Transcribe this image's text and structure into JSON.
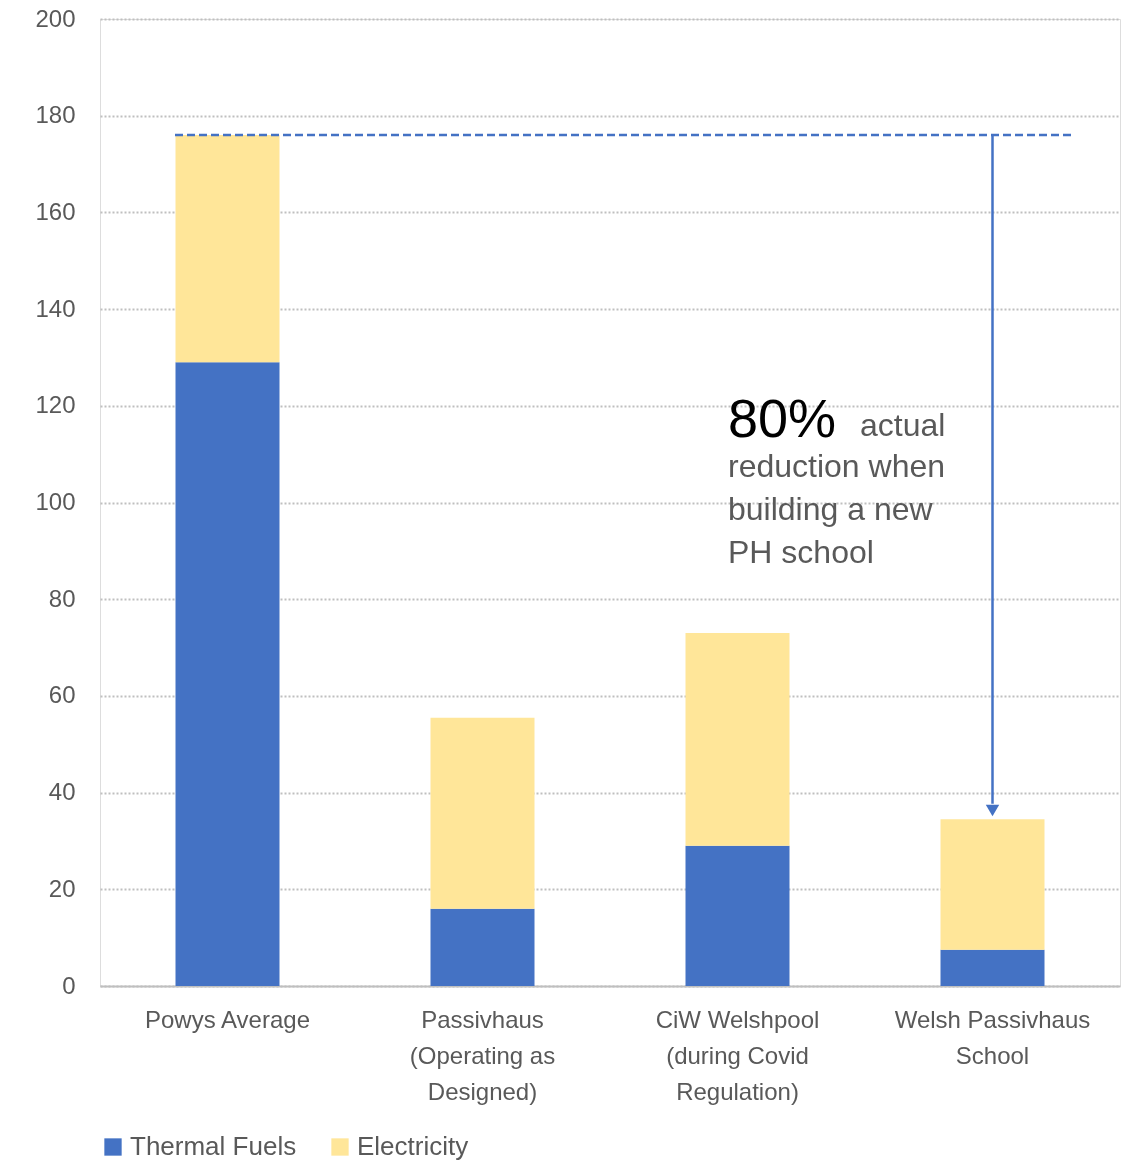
{
  "chart_data": {
    "type": "bar",
    "stacked": true,
    "categories": [
      "Powys Average",
      "Passivhaus (Operating as Designed)",
      "CiW Welshpool (during Covid Regulation)",
      "Welsh Passivhaus School"
    ],
    "series": [
      {
        "name": "Thermal Fuels",
        "color": "#4472c4",
        "values": [
          129,
          16,
          29,
          7.5
        ]
      },
      {
        "name": "Electricity",
        "color": "#ffe699",
        "values": [
          47,
          39.5,
          44,
          27
        ]
      }
    ],
    "ylim": [
      0,
      200
    ],
    "yticks": [
      0,
      20,
      40,
      60,
      80,
      100,
      120,
      140,
      160,
      180,
      200
    ],
    "grid": "y",
    "legend": "bottom",
    "ref_lines": [
      {
        "axis": "y",
        "value": 176,
        "color": "#4472c4",
        "line_style": "dashed"
      }
    ],
    "annotations": [
      "80%",
      "actual reduction when building a new PH school"
    ]
  }
}
